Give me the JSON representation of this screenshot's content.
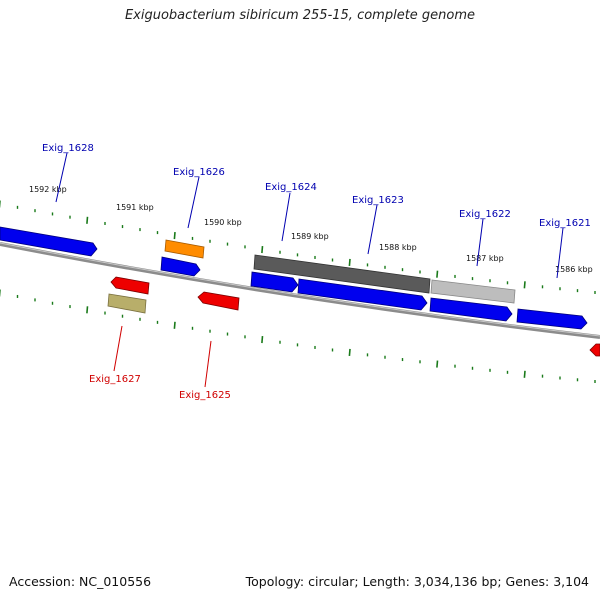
{
  "title": "Exiguobacterium sibiricum 255-15, complete genome",
  "footer": {
    "accession": "Accession: NC_010556",
    "summary": "Topology: circular; Length: 3,034,136 bp; Genes: 3,104"
  },
  "kbp_labels": [
    "1592 kbp",
    "1591 kbp",
    "1590 kbp",
    "1589 kbp",
    "1588 kbp",
    "1587 kbp",
    "1586 kbp"
  ],
  "forward_gene_labels": [
    "Exig_1628",
    "Exig_1626",
    "Exig_1624",
    "Exig_1623",
    "Exig_1622",
    "Exig_1621"
  ],
  "reverse_gene_labels": [
    "Exig_1627",
    "Exig_1625"
  ],
  "colors": {
    "forward_label": "#0000b0",
    "reverse_label": "#d00000",
    "forward_gene": "#0000ee",
    "reverse_gene": "#ee0000",
    "tick": "#1a7a1a",
    "backbone": "#8c8c8c",
    "feature_orange": "#ff8c00",
    "feature_khaki": "#b8ae6a",
    "feature_darkgray": "#5a5a5a",
    "feature_lightgray": "#bdbdbd"
  }
}
